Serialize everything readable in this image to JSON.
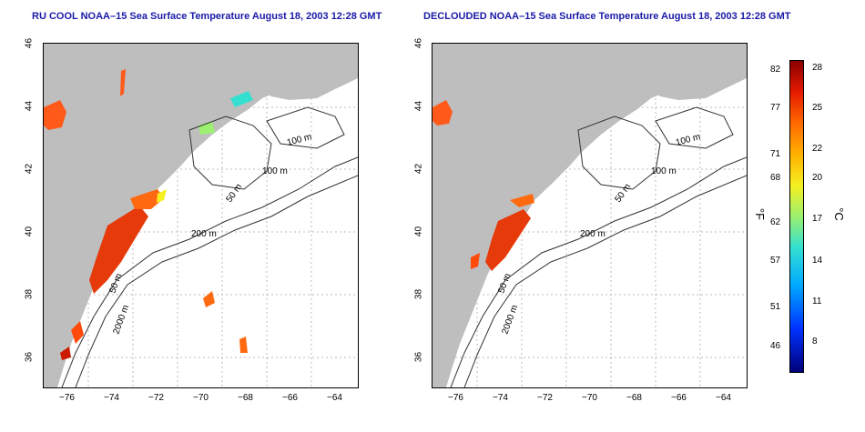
{
  "panels": [
    {
      "title": "RU COOL NOAA–15 Sea Surface Temperature August 18, 2003 12:28 GMT"
    },
    {
      "title": "DECLOUDED NOAA–15 Sea Surface Temperature August 18, 2003 12:28 GMT"
    }
  ],
  "axes": {
    "x_ticks": [
      "−76",
      "−74",
      "−72",
      "−70",
      "−68",
      "−66",
      "−64"
    ],
    "y_ticks": [
      "46",
      "44",
      "42",
      "40",
      "38",
      "36"
    ]
  },
  "contours": {
    "labels": [
      "100 m",
      "100 m",
      "50 m",
      "200 m",
      "50 m",
      "2000 m"
    ]
  },
  "colorbar": {
    "fahrenheit_label": "°F",
    "celsius_label": "°C",
    "fahrenheit_ticks": [
      "82",
      "77",
      "71",
      "68",
      "62",
      "57",
      "51",
      "46"
    ],
    "celsius_ticks": [
      "28",
      "25",
      "22",
      "20",
      "17",
      "14",
      "11",
      "8"
    ],
    "colors": [
      "#00007a",
      "#0033ff",
      "#00aaff",
      "#33e0d0",
      "#9cf070",
      "#f5f020",
      "#ffb000",
      "#ff6a00",
      "#e61a00",
      "#8a0000"
    ]
  },
  "colors": {
    "land": "#bebebe",
    "title": "#1a1aa8",
    "warm_sst": "#ff5a1a",
    "hot_sst": "#cc1a00"
  }
}
